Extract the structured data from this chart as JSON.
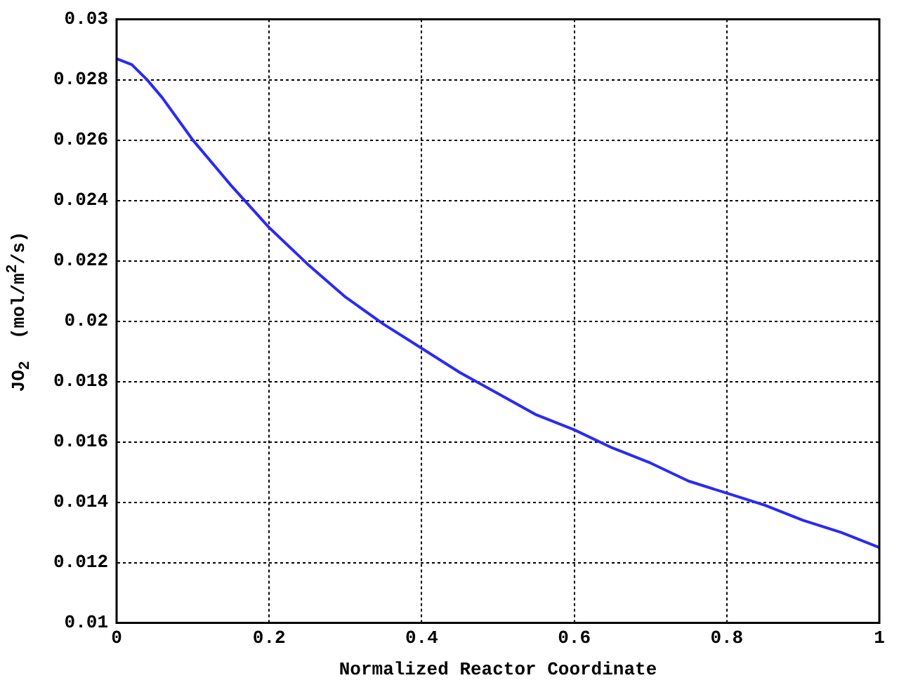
{
  "chart_data": {
    "type": "line",
    "xlabel": "Normalized Reactor Coordinate",
    "ylabel": "JO$_{2}$  (mol/m$^{2}$/s)",
    "x": [
      0,
      0.02,
      0.04,
      0.06,
      0.08,
      0.1,
      0.15,
      0.2,
      0.25,
      0.3,
      0.35,
      0.4,
      0.45,
      0.5,
      0.55,
      0.6,
      0.65,
      0.7,
      0.75,
      0.8,
      0.85,
      0.9,
      0.95,
      1.0
    ],
    "series": [
      {
        "color": "#2a2af5",
        "values": [
          0.0287,
          0.0285,
          0.028,
          0.0274,
          0.0267,
          0.026,
          0.0245,
          0.0231,
          0.0219,
          0.0208,
          0.0199,
          0.0191,
          0.0183,
          0.0176,
          0.0169,
          0.0164,
          0.0158,
          0.0153,
          0.0147,
          0.0143,
          0.0139,
          0.0134,
          0.013,
          0.0125
        ]
      }
    ],
    "xlim": [
      0,
      1
    ],
    "xticks": [
      0,
      0.2,
      0.4,
      0.6,
      0.8,
      1
    ],
    "ylim": [
      0.01,
      0.03
    ],
    "yticks": [
      0.01,
      0.012,
      0.014,
      0.016,
      0.018,
      0.02,
      0.022,
      0.024,
      0.026,
      0.028,
      0.03
    ],
    "grid": true,
    "legend": false,
    "marker": "none",
    "line_style": "solid"
  }
}
